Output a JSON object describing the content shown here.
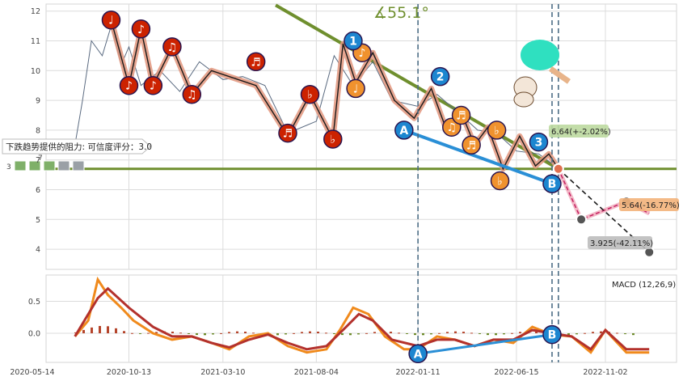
{
  "chart_data": [
    {
      "type": "line",
      "title": "",
      "angle_annotation": "∡55.1°",
      "x_ticks": [
        "2020-05-14",
        "2020-10-13",
        "2021-03-10",
        "2021-08-04",
        "2022-01-11",
        "2022-06-15",
        "2022-11-02"
      ],
      "y_ticks": [
        4,
        5,
        6,
        7,
        8,
        9,
        10,
        11,
        12
      ],
      "ylim": [
        3.3,
        12.1
      ],
      "grid": true,
      "price_series": {
        "name": "",
        "x": [
          "2020-07-20",
          "2020-08-01",
          "2020-08-15",
          "2020-09-01",
          "2020-09-15",
          "2020-10-01",
          "2020-10-13",
          "2020-11-01",
          "2020-12-01",
          "2021-01-01",
          "2021-02-01",
          "2021-03-10",
          "2021-04-10",
          "2021-05-15",
          "2021-06-20",
          "2021-08-04",
          "2021-09-01",
          "2021-10-01",
          "2021-11-01",
          "2021-12-01",
          "2022-01-11",
          "2022-02-10",
          "2022-03-15",
          "2022-04-15",
          "2022-05-15",
          "2022-06-15",
          "2022-07-20",
          "2022-08-15",
          "2022-08-20"
        ],
        "values": [
          7.5,
          9.0,
          11.0,
          10.5,
          11.5,
          10.2,
          10.8,
          9.5,
          10.0,
          9.3,
          10.3,
          9.7,
          9.8,
          9.5,
          7.9,
          8.3,
          10.5,
          9.5,
          10.3,
          9.0,
          8.8,
          9.2,
          8.6,
          8.0,
          7.9,
          7.3,
          7.2,
          6.8,
          6.7
        ]
      },
      "zigzag": {
        "x": [
          "2020-09-15",
          "2020-10-13",
          "2020-11-01",
          "2020-11-20",
          "2020-12-20",
          "2021-01-20",
          "2021-02-20",
          "2021-05-01",
          "2021-06-20",
          "2021-07-25",
          "2021-08-30",
          "2021-09-15",
          "2021-10-05",
          "2021-11-01",
          "2021-12-05",
          "2022-01-05",
          "2022-02-01",
          "2022-02-25",
          "2022-03-20",
          "2022-04-10",
          "2022-05-01",
          "2022-05-25",
          "2022-06-20",
          "2022-07-15",
          "2022-08-05",
          "2022-08-20"
        ],
        "values": [
          11.7,
          9.5,
          11.4,
          9.5,
          10.8,
          9.2,
          10.0,
          9.5,
          7.8,
          9.2,
          7.7,
          10.9,
          9.6,
          10.6,
          9.0,
          8.4,
          9.4,
          8.0,
          8.6,
          7.5,
          8.1,
          6.7,
          7.8,
          6.8,
          7.2,
          6.7
        ]
      },
      "markers": [
        {
          "x": "2020-09-15",
          "y": 11.7,
          "symbol": "♩",
          "color": "red"
        },
        {
          "x": "2020-10-13",
          "y": 9.5,
          "symbol": "♪",
          "color": "red"
        },
        {
          "x": "2020-11-01",
          "y": 11.4,
          "symbol": "♪",
          "color": "red"
        },
        {
          "x": "2020-11-20",
          "y": 9.5,
          "symbol": "♪",
          "color": "red"
        },
        {
          "x": "2020-12-20",
          "y": 10.8,
          "symbol": "♫",
          "color": "red"
        },
        {
          "x": "2021-01-20",
          "y": 9.2,
          "symbol": "♫",
          "color": "red"
        },
        {
          "x": "2021-05-01",
          "y": 10.3,
          "symbol": "♬",
          "color": "red"
        },
        {
          "x": "2021-06-20",
          "y": 7.9,
          "symbol": "♬",
          "color": "red"
        },
        {
          "x": "2021-07-25",
          "y": 9.2,
          "symbol": "♭",
          "color": "red"
        },
        {
          "x": "2021-08-30",
          "y": 7.7,
          "symbol": "♭",
          "color": "red"
        },
        {
          "x": "2021-10-05",
          "y": 9.4,
          "symbol": "♩",
          "color": "orange"
        },
        {
          "x": "2021-10-15",
          "y": 10.6,
          "symbol": "♪",
          "color": "orange"
        },
        {
          "x": "2022-03-05",
          "y": 8.1,
          "symbol": "♫",
          "color": "orange"
        },
        {
          "x": "2022-03-20",
          "y": 8.5,
          "symbol": "♬",
          "color": "orange"
        },
        {
          "x": "2022-04-05",
          "y": 7.5,
          "symbol": "♬",
          "color": "orange"
        },
        {
          "x": "2022-05-15",
          "y": 8.0,
          "symbol": "♭",
          "color": "orange"
        },
        {
          "x": "2022-05-20",
          "y": 6.3,
          "symbol": "♭",
          "color": "orange"
        },
        {
          "x": "2021-10-01",
          "y": 11.0,
          "symbol": "1",
          "color": "blue"
        },
        {
          "x": "2022-02-15",
          "y": 9.8,
          "symbol": "2",
          "color": "blue"
        },
        {
          "x": "2022-07-20",
          "y": 7.6,
          "symbol": "3",
          "color": "blue"
        },
        {
          "x": "2021-12-20",
          "y": 8.0,
          "symbol": "A",
          "color": "blue"
        },
        {
          "x": "2022-08-10",
          "y": 6.2,
          "symbol": "B",
          "color": "blue"
        }
      ],
      "trend_line": {
        "x": [
          "2021-06-01",
          "2022-08-20"
        ],
        "values": [
          12.2,
          6.7
        ],
        "color": "#6f8f2e"
      },
      "support_line": {
        "value": 6.7,
        "color": "#6f8f2e"
      },
      "ab_line": {
        "x": [
          "2021-12-20",
          "2022-08-10"
        ],
        "values": [
          8.0,
          6.2
        ],
        "color": "#2a8fd6"
      },
      "resistance_box": {
        "text": "下跌趋势提供的阻力: 可信度评分：3.0",
        "value_label": "7",
        "level": "3"
      },
      "projections": [
        {
          "label": "6.64(+-2.02%)",
          "value": 6.64,
          "color": "#bcd9a0"
        },
        {
          "label": "5.64(-16.77%)",
          "value": 5.64,
          "color": "#f3b27a"
        },
        {
          "label": "3.925(-42.11%)",
          "value": 3.925,
          "color": "#bdbdbd"
        }
      ],
      "projection_path": {
        "x": [
          "2022-08-20",
          "2022-09-25",
          "2022-12-05",
          "2023-01-10"
        ],
        "values": [
          6.7,
          5.0,
          5.6,
          5.2
        ]
      },
      "projection_path2": {
        "x": [
          "2022-08-20",
          "2023-01-10"
        ],
        "values": [
          6.7,
          3.9
        ]
      },
      "vlines": [
        "2022-01-11",
        "2022-08-10",
        "2022-08-20"
      ]
    },
    {
      "type": "line",
      "title": "MACD (12,26,9)",
      "y_ticks": [
        0.0,
        0.5
      ],
      "ylim": [
        -0.42,
        0.9
      ],
      "macd_line": {
        "x": [
          "2020-07-20",
          "2020-08-10",
          "2020-08-25",
          "2020-09-10",
          "2020-10-01",
          "2020-10-20",
          "2020-11-20",
          "2020-12-20",
          "2021-01-20",
          "2021-02-20",
          "2021-03-20",
          "2021-04-20",
          "2021-05-20",
          "2021-06-20",
          "2021-07-20",
          "2021-08-20",
          "2021-09-10",
          "2021-10-01",
          "2021-10-25",
          "2021-11-20",
          "2021-12-20",
          "2022-01-11",
          "2022-02-10",
          "2022-03-10",
          "2022-04-10",
          "2022-05-10",
          "2022-06-10",
          "2022-07-10",
          "2022-08-10",
          "2022-09-10",
          "2022-10-10",
          "2022-11-02",
          "2022-12-05",
          "2023-01-10"
        ],
        "values": [
          -0.05,
          0.2,
          0.84,
          0.6,
          0.4,
          0.2,
          0.0,
          -0.1,
          -0.05,
          -0.15,
          -0.25,
          -0.05,
          0.0,
          -0.2,
          -0.3,
          -0.25,
          0.05,
          0.4,
          0.3,
          -0.05,
          -0.25,
          -0.25,
          -0.05,
          -0.1,
          -0.2,
          -0.1,
          -0.15,
          0.1,
          -0.02,
          -0.05,
          -0.3,
          0.05,
          -0.3,
          -0.3
        ]
      },
      "signal_line": {
        "x": [
          "2020-07-20",
          "2020-08-25",
          "2020-09-10",
          "2020-10-13",
          "2020-11-20",
          "2020-12-20",
          "2021-01-20",
          "2021-02-20",
          "2021-03-20",
          "2021-04-20",
          "2021-05-20",
          "2021-06-20",
          "2021-07-20",
          "2021-08-20",
          "2021-09-20",
          "2021-10-10",
          "2021-11-01",
          "2021-12-01",
          "2022-01-11",
          "2022-02-10",
          "2022-03-10",
          "2022-04-10",
          "2022-05-10",
          "2022-06-10",
          "2022-07-10",
          "2022-08-10",
          "2022-09-10",
          "2022-10-10",
          "2022-11-02",
          "2022-12-05",
          "2023-01-10"
        ],
        "values": [
          -0.05,
          0.55,
          0.7,
          0.4,
          0.1,
          -0.05,
          -0.05,
          -0.15,
          -0.22,
          -0.1,
          -0.02,
          -0.15,
          -0.25,
          -0.2,
          0.1,
          0.3,
          0.2,
          -0.1,
          -0.2,
          -0.1,
          -0.1,
          -0.2,
          -0.1,
          -0.1,
          0.05,
          0.0,
          -0.05,
          -0.25,
          0.05,
          -0.25,
          -0.25
        ]
      },
      "ab_line": {
        "x": [
          "2022-01-11",
          "2022-08-10"
        ],
        "values": [
          -0.32,
          -0.02
        ],
        "color": "#2a8fd6"
      },
      "markers": [
        {
          "x": "2022-01-11",
          "y": -0.32,
          "symbol": "A"
        },
        {
          "x": "2022-08-10",
          "y": -0.02,
          "symbol": "B"
        }
      ]
    }
  ]
}
